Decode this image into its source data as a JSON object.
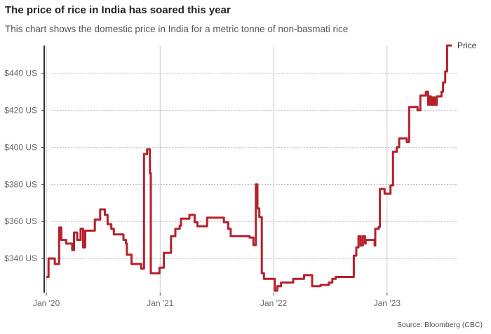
{
  "chart_data": {
    "type": "line",
    "step": true,
    "title": "The price of rice in India has soared this year",
    "subtitle": "This chart shows the domestic price in India for a metric tonne of non-basmati rice",
    "source": "Source: Bloomberg (CBC)",
    "xlabel": "",
    "ylabel": "",
    "xlim": [
      "2019-12-25",
      "2023-08-15"
    ],
    "ylim": [
      321.5,
      455
    ],
    "x_ticks": [
      {
        "date": "2020-01-01",
        "label": "Jan '20"
      },
      {
        "date": "2021-01-01",
        "label": "Jan '21"
      },
      {
        "date": "2022-01-01",
        "label": "Jan '22"
      },
      {
        "date": "2023-01-01",
        "label": "Jan '23"
      }
    ],
    "y_ticks": [
      {
        "value": 340,
        "label": "$340 US"
      },
      {
        "value": 360,
        "label": "$360 US"
      },
      {
        "value": 380,
        "label": "$380 US"
      },
      {
        "value": 400,
        "label": "$400 US"
      },
      {
        "value": 420,
        "label": "$420 US"
      },
      {
        "value": 440,
        "label": "$440 US"
      }
    ],
    "grid": {
      "x": "solid",
      "y": "dotted"
    },
    "legend": "end-of-line label",
    "series": [
      {
        "name": "Price",
        "color": "#b5202a",
        "points": [
          [
            "2020-01-01",
            330
          ],
          [
            "2020-01-08",
            340
          ],
          [
            "2020-01-28",
            337
          ],
          [
            "2020-02-11",
            356.7
          ],
          [
            "2020-02-18",
            350
          ],
          [
            "2020-03-05",
            348
          ],
          [
            "2020-03-24",
            344.5
          ],
          [
            "2020-03-30",
            354
          ],
          [
            "2020-04-09",
            350
          ],
          [
            "2020-04-20",
            356
          ],
          [
            "2020-04-28",
            346
          ],
          [
            "2020-05-05",
            355
          ],
          [
            "2020-06-05",
            361
          ],
          [
            "2020-06-22",
            366.5
          ],
          [
            "2020-07-07",
            363.5
          ],
          [
            "2020-07-16",
            358.5
          ],
          [
            "2020-07-28",
            356
          ],
          [
            "2020-08-05",
            353
          ],
          [
            "2020-09-05",
            350
          ],
          [
            "2020-09-13",
            348
          ],
          [
            "2020-09-16",
            342
          ],
          [
            "2020-10-01",
            337
          ],
          [
            "2020-11-01",
            334.5
          ],
          [
            "2020-11-10",
            396.4
          ],
          [
            "2020-11-20",
            399
          ],
          [
            "2020-11-29",
            386
          ],
          [
            "2020-12-02",
            332
          ],
          [
            "2020-12-30",
            335
          ],
          [
            "2021-01-13",
            343
          ],
          [
            "2021-02-05",
            352
          ],
          [
            "2021-02-19",
            356
          ],
          [
            "2021-03-05",
            357.7
          ],
          [
            "2021-03-09",
            361.5
          ],
          [
            "2021-04-05",
            363.5
          ],
          [
            "2021-04-22",
            359.5
          ],
          [
            "2021-05-01",
            357.4
          ],
          [
            "2021-06-01",
            362
          ],
          [
            "2021-07-25",
            359.5
          ],
          [
            "2021-08-08",
            356
          ],
          [
            "2021-08-16",
            352
          ],
          [
            "2021-10-16",
            351.3
          ],
          [
            "2021-10-28",
            347.2
          ],
          [
            "2021-11-05",
            380
          ],
          [
            "2021-11-10",
            367
          ],
          [
            "2021-11-16",
            362.3
          ],
          [
            "2021-11-24",
            332
          ],
          [
            "2021-12-01",
            329
          ],
          [
            "2022-01-05",
            322.6
          ],
          [
            "2022-01-13",
            325
          ],
          [
            "2022-01-25",
            327
          ],
          [
            "2022-03-05",
            329
          ],
          [
            "2022-04-09",
            331
          ],
          [
            "2022-05-05",
            325
          ],
          [
            "2022-06-01",
            325.7
          ],
          [
            "2022-06-28",
            327
          ],
          [
            "2022-07-09",
            329
          ],
          [
            "2022-07-20",
            330
          ],
          [
            "2022-09-05",
            330
          ],
          [
            "2022-09-16",
            341.5
          ],
          [
            "2022-09-24",
            346
          ],
          [
            "2022-10-01",
            352
          ],
          [
            "2022-10-08",
            347
          ],
          [
            "2022-10-15",
            352
          ],
          [
            "2022-10-22",
            348
          ],
          [
            "2022-10-24",
            350
          ],
          [
            "2022-11-22",
            347
          ],
          [
            "2022-11-24",
            356
          ],
          [
            "2022-12-05",
            357
          ],
          [
            "2022-12-09",
            377.5
          ],
          [
            "2022-12-24",
            375
          ],
          [
            "2023-01-12",
            379.4
          ],
          [
            "2023-01-20",
            397.6
          ],
          [
            "2023-02-01",
            400
          ],
          [
            "2023-02-09",
            404.8
          ],
          [
            "2023-03-05",
            403
          ],
          [
            "2023-03-13",
            421.8
          ],
          [
            "2023-04-09",
            420
          ],
          [
            "2023-04-18",
            428
          ],
          [
            "2023-05-06",
            430
          ],
          [
            "2023-05-13",
            423
          ],
          [
            "2023-05-16",
            427.5
          ],
          [
            "2023-05-22",
            423
          ],
          [
            "2023-05-28",
            427
          ],
          [
            "2023-06-03",
            423
          ],
          [
            "2023-06-10",
            427.5
          ],
          [
            "2023-06-25",
            430
          ],
          [
            "2023-06-30",
            435
          ],
          [
            "2023-07-07",
            441
          ],
          [
            "2023-07-13",
            455
          ],
          [
            "2023-07-28",
            455
          ]
        ]
      }
    ]
  }
}
